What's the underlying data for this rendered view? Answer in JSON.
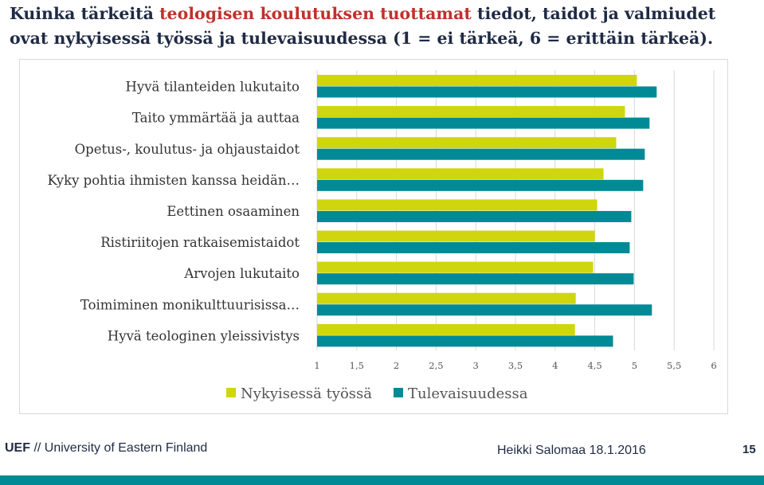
{
  "title": {
    "part1": "Kuinka tärkeitä ",
    "highlight": "teologisen koulutuksen tuottamat",
    "part2": " tiedot, taidot ja valmiudet ovat nykyisessä työssä ja tulevaisuudessa (1 = ei tärkeä, 6 = erittäin tärkeä)."
  },
  "colors": {
    "series1": "#cfd60d",
    "series2": "#008a96",
    "title_highlight": "#c0312b",
    "footer_bar": "#008a96"
  },
  "chart_data": {
    "type": "bar",
    "orientation": "horizontal",
    "categories": [
      "Hyvä tilanteiden lukutaito",
      "Taito ymmärtää ja auttaa",
      "Opetus-, koulutus- ja ohjaustaidot",
      "Kyky pohtia ihmisten kanssa heidän…",
      "Eettinen osaaminen",
      "Ristiriitojen ratkaisemistaidot",
      "Arvojen lukutaito",
      "Toimiminen monikulttuurisissa…",
      "Hyvä teologinen yleissivistys"
    ],
    "series": [
      {
        "name": "Nykyisessä työssä",
        "values": [
          5.03,
          4.88,
          4.77,
          4.61,
          4.53,
          4.5,
          4.48,
          4.26,
          4.25
        ]
      },
      {
        "name": "Tulevaisuudessa",
        "values": [
          5.28,
          5.19,
          5.13,
          5.11,
          4.96,
          4.94,
          4.99,
          5.22,
          4.73
        ]
      }
    ],
    "xlim": [
      1,
      6
    ],
    "xticks": [
      "1",
      "1,5",
      "2",
      "2,5",
      "3",
      "3,5",
      "4",
      "4,5",
      "5",
      "5,5",
      "6"
    ],
    "grid": true,
    "legend": "bottom"
  },
  "footer": {
    "org_short": "UEF",
    "org_sep": " // ",
    "org_name": "University of Eastern Finland",
    "author_date": "Heikki Salomaa 18.1.2016",
    "page": "15"
  }
}
